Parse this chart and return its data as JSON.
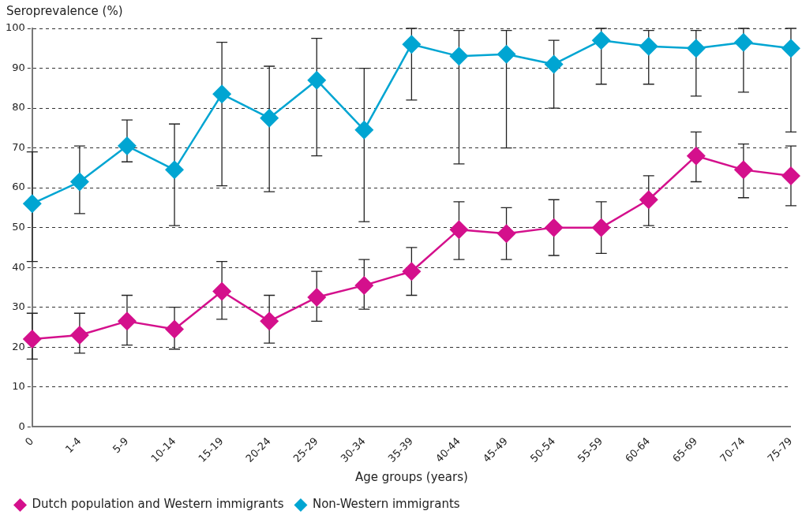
{
  "chart_data": {
    "type": "line",
    "ylabel": "Seroprevalence (%)",
    "xlabel": "Age groups (years)",
    "categories": [
      "0",
      "1-4",
      "5-9",
      "10-14",
      "15-19",
      "20-24",
      "25-29",
      "30-34",
      "35-39",
      "40-44",
      "45-49",
      "50-54",
      "55-59",
      "60-64",
      "65-69",
      "70-74",
      "75-79"
    ],
    "series": [
      {
        "name": "Dutch population and Western immigrants",
        "color": "#d4108c",
        "values": [
          22,
          23,
          26.5,
          24.5,
          34,
          26.5,
          32.5,
          35.5,
          39,
          49.5,
          48.5,
          50,
          50,
          57,
          68,
          64.5,
          63
        ],
        "errors": [
          [
            17,
            28.5
          ],
          [
            18.5,
            28.5
          ],
          [
            20.5,
            33
          ],
          [
            19.5,
            30
          ],
          [
            27,
            41.5
          ],
          [
            21,
            33
          ],
          [
            26.5,
            39
          ],
          [
            29.5,
            42
          ],
          [
            33,
            45
          ],
          [
            42,
            56.5
          ],
          [
            42,
            55
          ],
          [
            43,
            57
          ],
          [
            43.5,
            56.5
          ],
          [
            50.5,
            63
          ],
          [
            61.5,
            74
          ],
          [
            57.5,
            71
          ],
          [
            55.5,
            70.5
          ]
        ]
      },
      {
        "name": "Non-Western immigrants",
        "color": "#00a5d2",
        "values": [
          56,
          61.5,
          70.5,
          64.5,
          83.5,
          77.5,
          87,
          74.5,
          96,
          93,
          93.5,
          91,
          97,
          95.5,
          95,
          96.5,
          95
        ],
        "errors": [
          [
            41.5,
            69
          ],
          [
            53.5,
            70.5
          ],
          [
            66.5,
            77
          ],
          [
            50.5,
            76
          ],
          [
            60.5,
            96.5
          ],
          [
            59,
            90.5
          ],
          [
            68,
            97.5
          ],
          [
            51.5,
            90
          ],
          [
            82,
            100
          ],
          [
            66,
            99.5
          ],
          [
            70,
            99.5
          ],
          [
            80,
            97
          ],
          [
            86,
            100
          ],
          [
            86,
            99.5
          ],
          [
            83,
            99.5
          ],
          [
            84,
            100
          ],
          [
            74,
            100
          ]
        ]
      }
    ],
    "ylim": [
      0,
      100
    ],
    "yticks": [
      0,
      10,
      20,
      30,
      40,
      50,
      60,
      70,
      80,
      90,
      100
    ],
    "grid": "y",
    "legend": "bottom left",
    "marker": "diamond",
    "line_style": "solid"
  }
}
